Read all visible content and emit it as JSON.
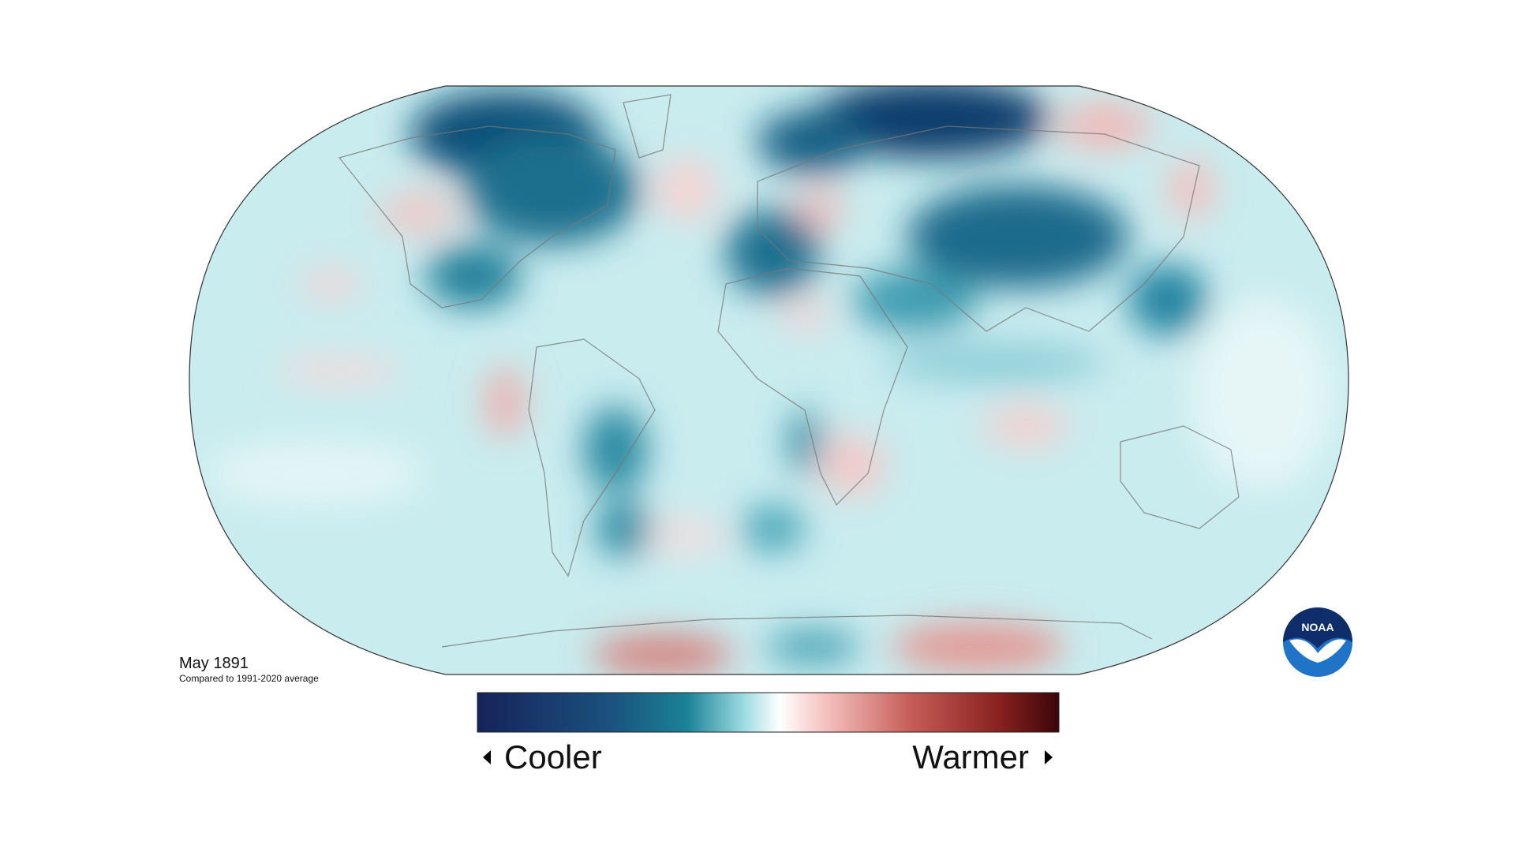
{
  "map": {
    "title": "May 1891",
    "subtitle": "Compared to 1991-2020 average"
  },
  "legend": {
    "low_label": "Cooler",
    "high_label": "Warmer"
  },
  "logo": {
    "text": "NOAA"
  }
}
